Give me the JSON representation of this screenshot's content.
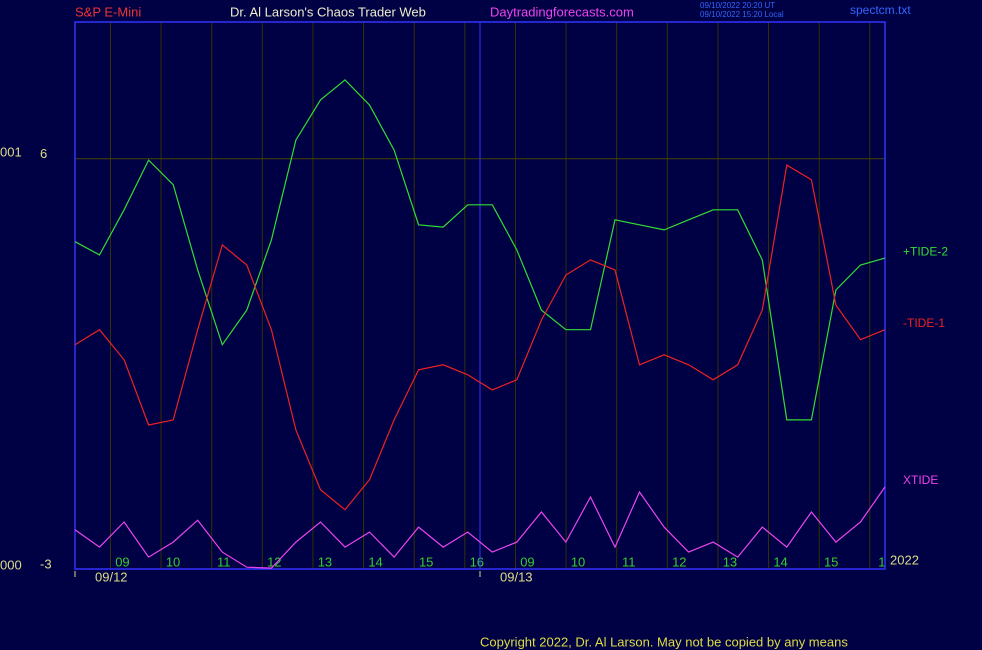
{
  "chart_data": {
    "type": "line",
    "title": "Dr. Al Larson's Chaos Trader Web",
    "instrument": "S&P E-Mini",
    "website": "Daytradingforecasts.com",
    "timestamps": [
      "09/10/2022 20:20 UT",
      "09/10/2022 15:20 Local"
    ],
    "file_name": "spectcm.txt",
    "copyright": "Copyright 2022, Dr. Al Larson. May not be copied by any means",
    "year": "2022",
    "left_labels": [
      "001",
      "000"
    ],
    "ylim": [
      -3,
      9
    ],
    "yticks": [
      -3,
      6
    ],
    "xlim": [
      0,
      16
    ],
    "xticks": [
      {
        "value": 0.7,
        "label": "09"
      },
      {
        "value": 1.7,
        "label": "10"
      },
      {
        "value": 2.7,
        "label": "11"
      },
      {
        "value": 3.7,
        "label": "12"
      },
      {
        "value": 4.7,
        "label": "13"
      },
      {
        "value": 5.7,
        "label": "14"
      },
      {
        "value": 6.7,
        "label": "15"
      },
      {
        "value": 7.7,
        "label": "16"
      },
      {
        "value": 8.7,
        "label": "09"
      },
      {
        "value": 9.7,
        "label": "10"
      },
      {
        "value": 10.7,
        "label": "11"
      },
      {
        "value": 11.7,
        "label": "12"
      },
      {
        "value": 12.7,
        "label": "13"
      },
      {
        "value": 13.7,
        "label": "14"
      },
      {
        "value": 14.7,
        "label": "15"
      },
      {
        "value": 15.7,
        "label": "1"
      }
    ],
    "date_ticks": [
      {
        "value": 0,
        "label": "09/12"
      },
      {
        "value": 8,
        "label": "09/13"
      }
    ],
    "grid": true,
    "series": [
      {
        "name": "+TIDE-2",
        "color": "#33dd33",
        "values": [
          4.18,
          3.89,
          4.88,
          5.97,
          5.43,
          3.56,
          1.92,
          2.68,
          4.22,
          6.41,
          7.29,
          7.73,
          7.18,
          6.19,
          4.55,
          4.5,
          4.99,
          4.99,
          4.0,
          2.68,
          2.25,
          2.25,
          4.66,
          4.55,
          4.44,
          4.66,
          4.88,
          4.88,
          3.78,
          0.27,
          0.27,
          3.12,
          3.67,
          3.82
        ]
      },
      {
        "name": "-TIDE-1",
        "color": "#ee2222",
        "values": [
          1.92,
          2.25,
          1.59,
          0.16,
          0.27,
          2.25,
          4.11,
          3.67,
          2.25,
          0.05,
          -1.26,
          -1.7,
          -1.04,
          0.27,
          1.37,
          1.48,
          1.26,
          0.93,
          1.15,
          2.46,
          3.45,
          3.78,
          3.56,
          1.48,
          1.7,
          1.48,
          1.15,
          1.48,
          2.68,
          5.86,
          5.54,
          2.79,
          2.03,
          2.25
        ]
      },
      {
        "name": "XTIDE",
        "color": "#ee44ee",
        "values": [
          -2.14,
          -2.52,
          -1.97,
          -2.74,
          -2.41,
          -1.93,
          -2.63,
          -2.96,
          -2.98,
          -2.41,
          -1.97,
          -2.52,
          -2.19,
          -2.74,
          -2.08,
          -2.52,
          -2.19,
          -2.63,
          -2.41,
          -1.75,
          -2.41,
          -1.42,
          -2.52,
          -1.31,
          -2.08,
          -2.63,
          -2.41,
          -2.74,
          -2.08,
          -2.52,
          -1.75,
          -2.41,
          -1.97,
          -1.2
        ]
      }
    ]
  }
}
